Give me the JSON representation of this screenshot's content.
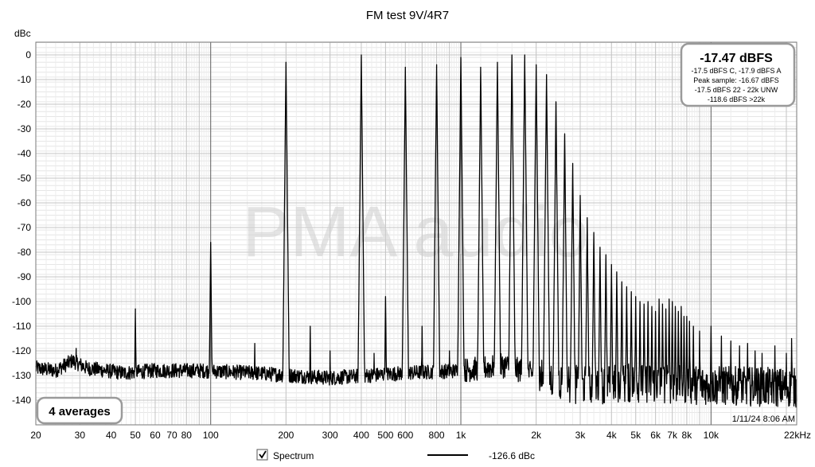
{
  "chart_data": {
    "type": "line",
    "title": "FM test 9V/4R7",
    "ylabel": "dBc",
    "xlabel": "",
    "x_scale": "log",
    "xlim": [
      20,
      22000
    ],
    "ylim": [
      -145,
      5
    ],
    "y_ticks": [
      0,
      -10,
      -20,
      -30,
      -40,
      -50,
      -60,
      -70,
      -80,
      -90,
      -100,
      -110,
      -120,
      -130,
      -140
    ],
    "x_ticks": [
      {
        "value": 20,
        "label": "20"
      },
      {
        "value": 30,
        "label": "30"
      },
      {
        "value": 40,
        "label": "40"
      },
      {
        "value": 50,
        "label": "50"
      },
      {
        "value": 60,
        "label": "60"
      },
      {
        "value": 70,
        "label": "70"
      },
      {
        "value": 80,
        "label": "80"
      },
      {
        "value": 100,
        "label": "100"
      },
      {
        "value": 200,
        "label": "200"
      },
      {
        "value": 300,
        "label": "300"
      },
      {
        "value": 400,
        "label": "400"
      },
      {
        "value": 500,
        "label": "500"
      },
      {
        "value": 600,
        "label": "600"
      },
      {
        "value": 800,
        "label": "800"
      },
      {
        "value": 1000,
        "label": "1k"
      },
      {
        "value": 2000,
        "label": "2k"
      },
      {
        "value": 3000,
        "label": "3k"
      },
      {
        "value": 4000,
        "label": "4k"
      },
      {
        "value": 5000,
        "label": "5k"
      },
      {
        "value": 6000,
        "label": "6k"
      },
      {
        "value": 7000,
        "label": "7k"
      },
      {
        "value": 8000,
        "label": "8k"
      },
      {
        "value": 10000,
        "label": "10k"
      },
      {
        "value": 22000,
        "label": "22kHz"
      }
    ],
    "grid": true,
    "legend_position": "bottom",
    "series": [
      {
        "name": "Spectrum",
        "color": "#000000",
        "noise_floor": [
          [
            20,
            -127
          ],
          [
            24,
            -128
          ],
          [
            28,
            -124
          ],
          [
            32,
            -127
          ],
          [
            45,
            -129
          ],
          [
            60,
            -128
          ],
          [
            90,
            -128
          ],
          [
            150,
            -129
          ],
          [
            300,
            -131
          ],
          [
            600,
            -129
          ],
          [
            1000,
            -128
          ],
          [
            1500,
            -126
          ],
          [
            2000,
            -130
          ],
          [
            3000,
            -134
          ],
          [
            5000,
            -133
          ],
          [
            10000,
            -134
          ],
          [
            22000,
            -135
          ]
        ],
        "peaks": [
          {
            "f": 29,
            "db": -119
          },
          {
            "f": 50,
            "db": -103
          },
          {
            "f": 100,
            "db": -76
          },
          {
            "f": 150,
            "db": -117
          },
          {
            "f": 200,
            "db": -3
          },
          {
            "f": 250,
            "db": -110
          },
          {
            "f": 300,
            "db": -120
          },
          {
            "f": 400,
            "db": 0
          },
          {
            "f": 450,
            "db": -121
          },
          {
            "f": 500,
            "db": -98
          },
          {
            "f": 600,
            "db": -5
          },
          {
            "f": 700,
            "db": -110
          },
          {
            "f": 800,
            "db": -4
          },
          {
            "f": 900,
            "db": -120
          },
          {
            "f": 1000,
            "db": -1
          },
          {
            "f": 1200,
            "db": -5
          },
          {
            "f": 1400,
            "db": -3
          },
          {
            "f": 1600,
            "db": 0
          },
          {
            "f": 1800,
            "db": 0
          },
          {
            "f": 2000,
            "db": -4
          },
          {
            "f": 2200,
            "db": -8
          },
          {
            "f": 2400,
            "db": -19
          },
          {
            "f": 2600,
            "db": -32
          },
          {
            "f": 2800,
            "db": -44
          },
          {
            "f": 3000,
            "db": -57
          },
          {
            "f": 3200,
            "db": -66
          },
          {
            "f": 3400,
            "db": -72
          },
          {
            "f": 3600,
            "db": -78
          },
          {
            "f": 3800,
            "db": -81
          },
          {
            "f": 4000,
            "db": -85
          },
          {
            "f": 4200,
            "db": -88
          },
          {
            "f": 4400,
            "db": -92
          },
          {
            "f": 4600,
            "db": -94
          },
          {
            "f": 4800,
            "db": -96
          },
          {
            "f": 5000,
            "db": -98
          },
          {
            "f": 5200,
            "db": -100
          },
          {
            "f": 5400,
            "db": -101
          },
          {
            "f": 5600,
            "db": -100
          },
          {
            "f": 5800,
            "db": -102
          },
          {
            "f": 6000,
            "db": -104
          },
          {
            "f": 6200,
            "db": -99
          },
          {
            "f": 6400,
            "db": -101
          },
          {
            "f": 6600,
            "db": -103
          },
          {
            "f": 6800,
            "db": -99
          },
          {
            "f": 7000,
            "db": -100
          },
          {
            "f": 7200,
            "db": -102
          },
          {
            "f": 7400,
            "db": -104
          },
          {
            "f": 7600,
            "db": -102
          },
          {
            "f": 7800,
            "db": -106
          },
          {
            "f": 8000,
            "db": -106
          },
          {
            "f": 8200,
            "db": -108
          },
          {
            "f": 8500,
            "db": -110
          },
          {
            "f": 9000,
            "db": -112
          },
          {
            "f": 10000,
            "db": -110
          },
          {
            "f": 11000,
            "db": -114
          },
          {
            "f": 12000,
            "db": -116
          },
          {
            "f": 13000,
            "db": -118
          },
          {
            "f": 14000,
            "db": -117
          },
          {
            "f": 15000,
            "db": -120
          },
          {
            "f": 16000,
            "db": -121
          },
          {
            "f": 18000,
            "db": -118
          },
          {
            "f": 20000,
            "db": -121
          },
          {
            "f": 21000,
            "db": -115
          }
        ]
      }
    ],
    "annotations": {
      "watermark": "PMA audio",
      "info_box": {
        "main": "-17.47 dBFS",
        "lines": [
          "-17.5 dBFS C, -17.9 dBFS A",
          "Peak sample: -16.67 dBFS",
          "-17.5 dBFS 22 - 22k UNW",
          "-118.6 dBFS >22k"
        ]
      },
      "averages": "4 averages",
      "timestamp": "1/11/24 8:06 AM"
    },
    "legend": {
      "checkbox_checked": true,
      "label": "Spectrum",
      "value": "-126.6 dBc"
    }
  }
}
